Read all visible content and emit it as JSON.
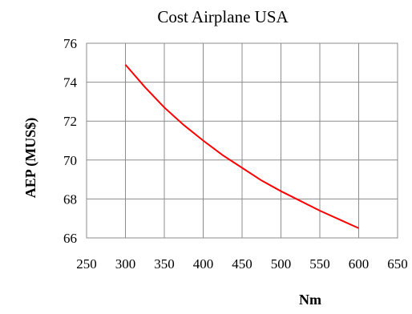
{
  "chart_data": {
    "type": "line",
    "title": "Cost Airplane USA",
    "xlabel": "Nm",
    "ylabel": "AEP (MUS$)",
    "xlim": [
      250,
      650
    ],
    "ylim": [
      66,
      76
    ],
    "xticks": [
      250,
      300,
      350,
      400,
      450,
      500,
      550,
      600,
      650
    ],
    "yticks": [
      66,
      68,
      70,
      72,
      74,
      76
    ],
    "grid": true,
    "series": [
      {
        "color": "#ff0000",
        "x": [
          300,
          325,
          350,
          375,
          400,
          425,
          450,
          475,
          500,
          525,
          550,
          575,
          600
        ],
        "y": [
          74.9,
          73.75,
          72.7,
          71.8,
          71.0,
          70.25,
          69.6,
          68.95,
          68.4,
          67.9,
          67.4,
          66.95,
          66.5
        ]
      }
    ]
  }
}
